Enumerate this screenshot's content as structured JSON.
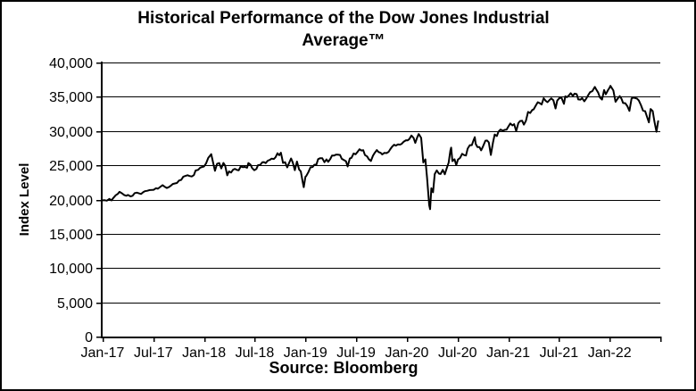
{
  "header": {
    "title": "Historical  Performance of the Dow Jones Industrial\nAverage™"
  },
  "footer": {
    "source": "Source: Bloomberg"
  },
  "colors": {
    "line": "#000000",
    "grid": "#000000",
    "axis": "#000000",
    "background": "#ffffff",
    "text": "#000000"
  },
  "chart_data": {
    "type": "line",
    "title": "Historical Performance of the Dow Jones Industrial Average™",
    "xlabel": "",
    "ylabel": "Index Level",
    "source": "Source: Bloomberg",
    "legend": "none",
    "grid": "horizontal",
    "x_unit": "months since Jan-2017",
    "x_axis_range": [
      0,
      66
    ],
    "y_axis_range": [
      0,
      40000
    ],
    "y_tick_step": 5000,
    "y_ticks": [
      0,
      5000,
      10000,
      15000,
      20000,
      25000,
      30000,
      35000,
      40000
    ],
    "y_tick_labels": [
      "0",
      "5,000",
      "10,000",
      "15,000",
      "20,000",
      "25,000",
      "30,000",
      "35,000",
      "40,000"
    ],
    "x_tick_positions": [
      0,
      6,
      12,
      18,
      24,
      30,
      36,
      42,
      48,
      54,
      60
    ],
    "x_tick_labels": [
      "Jan-17",
      "Jul-17",
      "Jan-18",
      "Jul-18",
      "Jan-19",
      "Jul-19",
      "Jan-20",
      "Jul-20",
      "Jan-21",
      "Jul-21",
      "Jan-22"
    ],
    "x_extra_ticks": [
      66
    ],
    "series": [
      {
        "name": "Dow Jones Industrial Average",
        "points": [
          [
            0,
            19882
          ],
          [
            0.25,
            19899
          ],
          [
            0.5,
            19827
          ],
          [
            0.8,
            20094
          ],
          [
            1.05,
            19864
          ],
          [
            1.3,
            20269
          ],
          [
            1.55,
            20624
          ],
          [
            1.8,
            20822
          ],
          [
            2.0,
            21116
          ],
          [
            2.3,
            20903
          ],
          [
            2.55,
            20660
          ],
          [
            2.8,
            20551
          ],
          [
            3.0,
            20663
          ],
          [
            3.3,
            20453
          ],
          [
            3.55,
            20548
          ],
          [
            3.8,
            20940
          ],
          [
            4.05,
            21006
          ],
          [
            4.3,
            20897
          ],
          [
            4.55,
            20805
          ],
          [
            4.8,
            21080
          ],
          [
            5.0,
            21206
          ],
          [
            5.3,
            21272
          ],
          [
            5.55,
            21385
          ],
          [
            5.8,
            21395
          ],
          [
            6.05,
            21414
          ],
          [
            6.3,
            21638
          ],
          [
            6.55,
            21580
          ],
          [
            6.8,
            21830
          ],
          [
            7.1,
            22092
          ],
          [
            7.35,
            21858
          ],
          [
            7.6,
            21675
          ],
          [
            7.85,
            21814
          ],
          [
            8.05,
            21988
          ],
          [
            8.3,
            22268
          ],
          [
            8.55,
            22350
          ],
          [
            8.8,
            22405
          ],
          [
            9.05,
            22774
          ],
          [
            9.3,
            22872
          ],
          [
            9.55,
            23329
          ],
          [
            9.8,
            23434
          ],
          [
            10.05,
            23539
          ],
          [
            10.3,
            23423
          ],
          [
            10.55,
            23358
          ],
          [
            10.8,
            23558
          ],
          [
            11.0,
            24232
          ],
          [
            11.3,
            24329
          ],
          [
            11.55,
            24652
          ],
          [
            11.8,
            24754
          ],
          [
            12.0,
            24825
          ],
          [
            12.25,
            25296
          ],
          [
            12.5,
            26072
          ],
          [
            12.85,
            26617
          ],
          [
            13.05,
            25521
          ],
          [
            13.3,
            24191
          ],
          [
            13.55,
            25219
          ],
          [
            13.8,
            25310
          ],
          [
            14.05,
            24538
          ],
          [
            14.3,
            25336
          ],
          [
            14.5,
            24947
          ],
          [
            14.75,
            23533
          ],
          [
            14.95,
            24103
          ],
          [
            15.2,
            23933
          ],
          [
            15.45,
            24360
          ],
          [
            15.65,
            24463
          ],
          [
            15.9,
            24311
          ],
          [
            16.1,
            24263
          ],
          [
            16.35,
            24831
          ],
          [
            16.6,
            24715
          ],
          [
            16.85,
            24753
          ],
          [
            17.1,
            24635
          ],
          [
            17.25,
            25317
          ],
          [
            17.5,
            25090
          ],
          [
            17.7,
            24581
          ],
          [
            17.95,
            24271
          ],
          [
            18.2,
            24456
          ],
          [
            18.4,
            25019
          ],
          [
            18.65,
            25058
          ],
          [
            18.9,
            25451
          ],
          [
            19.1,
            25463
          ],
          [
            19.3,
            25313
          ],
          [
            19.55,
            25669
          ],
          [
            19.8,
            25790
          ],
          [
            20.0,
            25965
          ],
          [
            20.25,
            25917
          ],
          [
            20.45,
            26154
          ],
          [
            20.7,
            26744
          ],
          [
            20.9,
            26458
          ],
          [
            21.1,
            26828
          ],
          [
            21.35,
            25340
          ],
          [
            21.6,
            25444
          ],
          [
            21.85,
            24688
          ],
          [
            22.05,
            25271
          ],
          [
            22.3,
            25989
          ],
          [
            22.5,
            25413
          ],
          [
            22.75,
            24286
          ],
          [
            23.0,
            25538
          ],
          [
            23.25,
            24389
          ],
          [
            23.45,
            24101
          ],
          [
            23.7,
            22445
          ],
          [
            23.8,
            21792
          ],
          [
            24.0,
            23327
          ],
          [
            24.1,
            23433
          ],
          [
            24.35,
            23996
          ],
          [
            24.6,
            24706
          ],
          [
            24.85,
            24737
          ],
          [
            25.05,
            25064
          ],
          [
            25.3,
            25106
          ],
          [
            25.5,
            25883
          ],
          [
            25.75,
            26032
          ],
          [
            26.0,
            26026
          ],
          [
            26.25,
            25450
          ],
          [
            26.5,
            25849
          ],
          [
            26.7,
            25502
          ],
          [
            26.95,
            25929
          ],
          [
            27.15,
            26425
          ],
          [
            27.4,
            26412
          ],
          [
            27.6,
            26560
          ],
          [
            27.85,
            26543
          ],
          [
            28.1,
            26505
          ],
          [
            28.3,
            25942
          ],
          [
            28.55,
            25764
          ],
          [
            28.8,
            25586
          ],
          [
            29.0,
            24815
          ],
          [
            29.25,
            25984
          ],
          [
            29.45,
            26090
          ],
          [
            29.7,
            26719
          ],
          [
            29.95,
            26600
          ],
          [
            30.15,
            26922
          ],
          [
            30.4,
            27332
          ],
          [
            30.6,
            27154
          ],
          [
            30.85,
            27192
          ],
          [
            31.05,
            26485
          ],
          [
            31.3,
            26287
          ],
          [
            31.5,
            25886
          ],
          [
            31.75,
            25629
          ],
          [
            32.0,
            26403
          ],
          [
            32.2,
            26797
          ],
          [
            32.45,
            27219
          ],
          [
            32.65,
            26935
          ],
          [
            32.9,
            26820
          ],
          [
            33.1,
            26574
          ],
          [
            33.35,
            26817
          ],
          [
            33.6,
            26770
          ],
          [
            33.85,
            26958
          ],
          [
            34.05,
            27347
          ],
          [
            34.25,
            27681
          ],
          [
            34.5,
            28005
          ],
          [
            34.7,
            27876
          ],
          [
            34.95,
            28051
          ],
          [
            35.2,
            28015
          ],
          [
            35.4,
            28135
          ],
          [
            35.65,
            28455
          ],
          [
            35.9,
            28645
          ],
          [
            36.1,
            28635
          ],
          [
            36.3,
            28824
          ],
          [
            36.55,
            29348
          ],
          [
            36.8,
            28990
          ],
          [
            37.0,
            28256
          ],
          [
            37.25,
            29103
          ],
          [
            37.4,
            29551
          ],
          [
            37.5,
            29398
          ],
          [
            37.7,
            28992
          ],
          [
            37.95,
            25409
          ],
          [
            38.2,
            25865
          ],
          [
            38.4,
            23185
          ],
          [
            38.65,
            19174
          ],
          [
            38.75,
            18592
          ],
          [
            38.9,
            21637
          ],
          [
            39.1,
            21053
          ],
          [
            39.3,
            23719
          ],
          [
            39.55,
            24242
          ],
          [
            39.8,
            23775
          ],
          [
            40.0,
            23724
          ],
          [
            40.25,
            24331
          ],
          [
            40.5,
            23685
          ],
          [
            40.7,
            24465
          ],
          [
            40.95,
            25383
          ],
          [
            41.15,
            27111
          ],
          [
            41.25,
            27572
          ],
          [
            41.4,
            25606
          ],
          [
            41.65,
            25871
          ],
          [
            41.85,
            25016
          ],
          [
            42.05,
            25827
          ],
          [
            42.3,
            26075
          ],
          [
            42.55,
            26672
          ],
          [
            42.8,
            26470
          ],
          [
            43.0,
            26428
          ],
          [
            43.2,
            27433
          ],
          [
            43.45,
            27931
          ],
          [
            43.7,
            27930
          ],
          [
            43.9,
            28654
          ],
          [
            44.05,
            29100
          ],
          [
            44.15,
            28133
          ],
          [
            44.35,
            27666
          ],
          [
            44.6,
            27657
          ],
          [
            44.8,
            27174
          ],
          [
            45.0,
            27683
          ],
          [
            45.3,
            28587
          ],
          [
            45.5,
            28606
          ],
          [
            45.7,
            28336
          ],
          [
            45.95,
            26502
          ],
          [
            46.2,
            28323
          ],
          [
            46.4,
            29480
          ],
          [
            46.65,
            29263
          ],
          [
            46.85,
            29910
          ],
          [
            47.1,
            30218
          ],
          [
            47.35,
            30046
          ],
          [
            47.6,
            30179
          ],
          [
            47.8,
            30200
          ],
          [
            48.0,
            30606
          ],
          [
            48.25,
            31098
          ],
          [
            48.5,
            30814
          ],
          [
            48.7,
            30997
          ],
          [
            48.95,
            29983
          ],
          [
            49.2,
            31148
          ],
          [
            49.4,
            31458
          ],
          [
            49.65,
            31494
          ],
          [
            49.85,
            30932
          ],
          [
            50.1,
            31496
          ],
          [
            50.35,
            32779
          ],
          [
            50.6,
            32628
          ],
          [
            50.85,
            33073
          ],
          [
            51.0,
            33153
          ],
          [
            51.3,
            33801
          ],
          [
            51.5,
            34201
          ],
          [
            51.75,
            34043
          ],
          [
            51.95,
            33875
          ],
          [
            52.2,
            34778
          ],
          [
            52.45,
            34382
          ],
          [
            52.65,
            34208
          ],
          [
            52.9,
            34529
          ],
          [
            53.1,
            34756
          ],
          [
            53.35,
            34480
          ],
          [
            53.6,
            33290
          ],
          [
            53.8,
            34434
          ],
          [
            54.05,
            34786
          ],
          [
            54.3,
            34870
          ],
          [
            54.6,
            33962
          ],
          [
            54.75,
            35062
          ],
          [
            54.95,
            34935
          ],
          [
            55.2,
            35209
          ],
          [
            55.4,
            35515
          ],
          [
            55.65,
            35120
          ],
          [
            55.85,
            35456
          ],
          [
            56.1,
            35369
          ],
          [
            56.3,
            34608
          ],
          [
            56.55,
            34585
          ],
          [
            56.75,
            34798
          ],
          [
            57.0,
            34326
          ],
          [
            57.25,
            34746
          ],
          [
            57.5,
            35295
          ],
          [
            57.7,
            35677
          ],
          [
            57.95,
            35820
          ],
          [
            58.25,
            36432
          ],
          [
            58.4,
            36100
          ],
          [
            58.65,
            35602
          ],
          [
            58.85,
            34899
          ],
          [
            59.1,
            34580
          ],
          [
            59.35,
            35971
          ],
          [
            59.55,
            35365
          ],
          [
            59.8,
            35950
          ],
          [
            60.0,
            36338
          ],
          [
            60.1,
            36585
          ],
          [
            60.45,
            35912
          ],
          [
            60.7,
            34265
          ],
          [
            60.95,
            34725
          ],
          [
            61.2,
            35090
          ],
          [
            61.4,
            34738
          ],
          [
            61.6,
            34079
          ],
          [
            61.85,
            34059
          ],
          [
            62.1,
            33615
          ],
          [
            62.35,
            32944
          ],
          [
            62.6,
            34755
          ],
          [
            62.8,
            34861
          ],
          [
            63.0,
            34818
          ],
          [
            63.25,
            34721
          ],
          [
            63.45,
            34451
          ],
          [
            63.7,
            33811
          ],
          [
            63.95,
            32977
          ],
          [
            64.2,
            32899
          ],
          [
            64.4,
            32197
          ],
          [
            64.65,
            31262
          ],
          [
            64.85,
            33213
          ],
          [
            65.1,
            32900
          ],
          [
            65.3,
            31393
          ],
          [
            65.55,
            29889
          ],
          [
            65.75,
            31438
          ]
        ]
      }
    ]
  }
}
